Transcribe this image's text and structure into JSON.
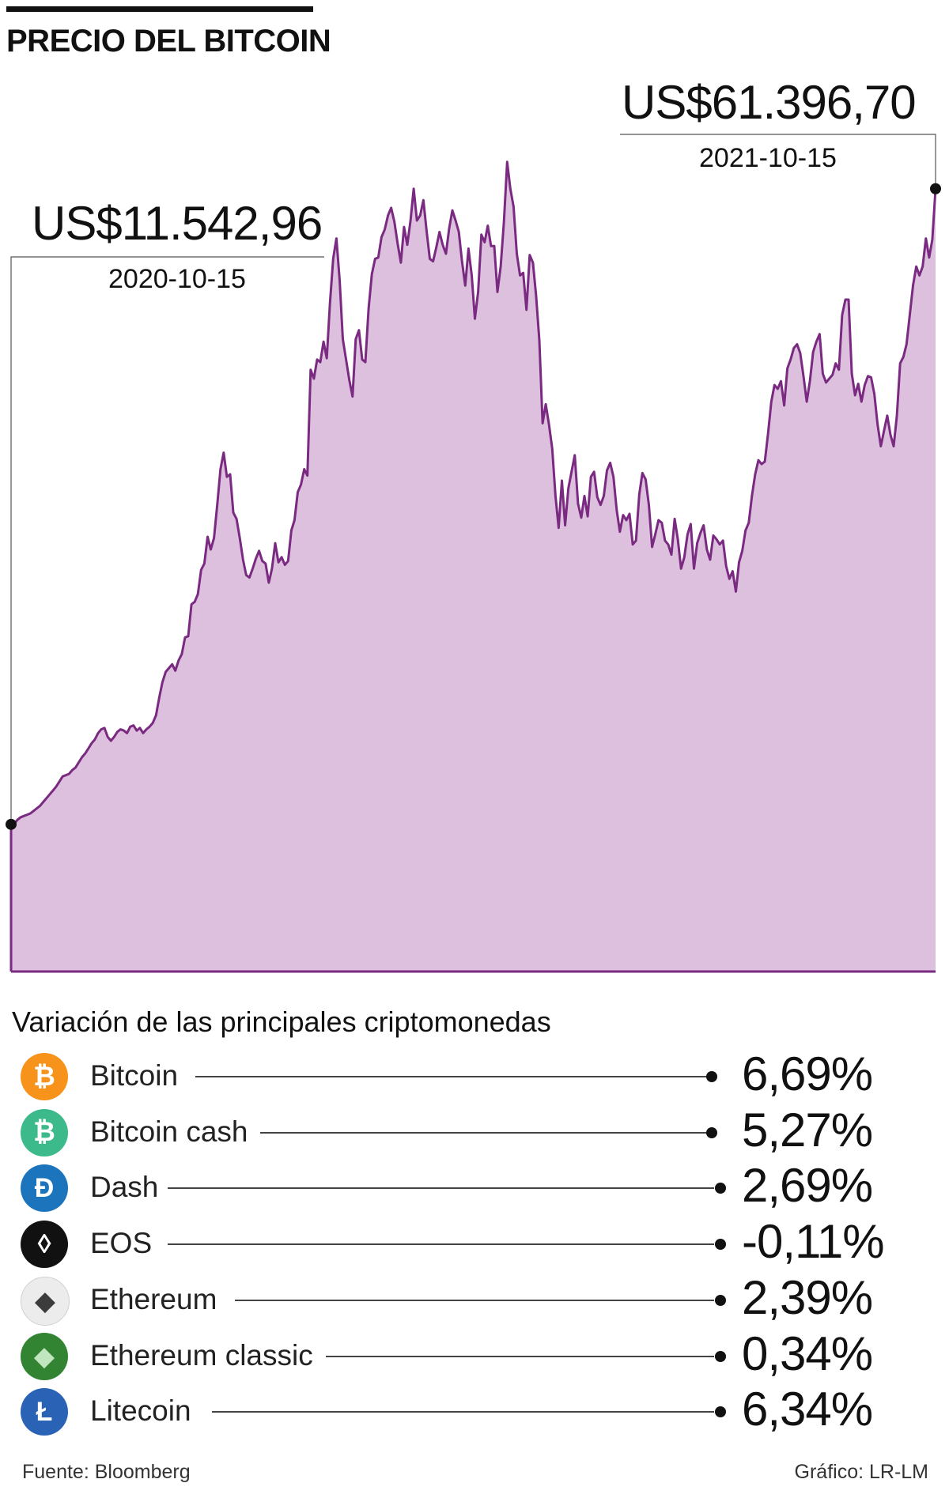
{
  "header": {
    "title": "PRECIO DEL BITCOIN"
  },
  "chart_data": {
    "type": "area",
    "title": "PRECIO DEL BITCOIN",
    "x_start": "2020-10-15",
    "x_end": "2021-10-15",
    "color": "#7a2a80",
    "fill": "#dcc0de",
    "grid": false,
    "start_point": {
      "value_label": "US$11.542,96",
      "date": "2020-10-15",
      "value": 11542.96
    },
    "end_point": {
      "value_label": "US$61.396,70",
      "date": "2021-10-15",
      "value": 61396.7
    },
    "ylim": [
      0,
      70000
    ],
    "values": [
      11543,
      11600,
      11900,
      12100,
      12200,
      12300,
      12400,
      12600,
      12800,
      13000,
      13300,
      13600,
      13900,
      14200,
      14500,
      14900,
      15300,
      15400,
      15500,
      15800,
      16000,
      16400,
      16800,
      17100,
      17500,
      17900,
      18200,
      18700,
      19000,
      19100,
      18400,
      18100,
      18400,
      18800,
      19000,
      18900,
      18700,
      19200,
      19300,
      18900,
      19100,
      18700,
      19000,
      19200,
      19500,
      20100,
      21500,
      22700,
      23500,
      23800,
      24100,
      23600,
      24400,
      24900,
      26200,
      26300,
      28800,
      29000,
      29600,
      31500,
      32000,
      34100,
      33100,
      34000,
      36600,
      39400,
      40700,
      38800,
      39000,
      36000,
      35500,
      34000,
      32300,
      31100,
      30900,
      31600,
      32400,
      33000,
      32200,
      32000,
      30500,
      31600,
      33600,
      32100,
      32500,
      31900,
      32200,
      34600,
      35400,
      37600,
      38200,
      39400,
      38900,
      47200,
      46500,
      48000,
      47800,
      49400,
      48100,
      52400,
      55900,
      57500,
      54200,
      49600,
      48000,
      46400,
      45100,
      49600,
      50300,
      48000,
      47800,
      52000,
      54700,
      55900,
      56000,
      57600,
      58200,
      59300,
      59900,
      58800,
      57100,
      55600,
      58400,
      57000,
      58900,
      61400,
      58900,
      59300,
      60500,
      58100,
      55900,
      55700,
      56800,
      58000,
      57000,
      56300,
      58300,
      59700,
      58900,
      58000,
      55700,
      53800,
      56700,
      54600,
      51200,
      53300,
      57800,
      57200,
      58500,
      56900,
      56900,
      53300,
      55300,
      58800,
      63500,
      61400,
      60000,
      56300,
      54600,
      54800,
      51900,
      56200,
      55600,
      53000,
      49500,
      43000,
      44500,
      42900,
      41000,
      37300,
      34800,
      38500,
      35000,
      37900,
      39200,
      40500,
      36700,
      35600,
      37300,
      35700,
      38800,
      39200,
      37200,
      36600,
      37300,
      39300,
      39900,
      38800,
      36200,
      34500,
      35800,
      35400,
      35900,
      33500,
      33800,
      37400,
      39100,
      38600,
      36600,
      33300,
      34300,
      35400,
      35200,
      33800,
      33500,
      32700,
      35500,
      33900,
      31600,
      32500,
      34300,
      35100,
      31600,
      33600,
      34400,
      35000,
      33100,
      32300,
      34200,
      33900,
      33500,
      33800,
      31800,
      30800,
      31400,
      29800,
      32100,
      33000,
      34600,
      35200,
      37300,
      39000,
      40100,
      39800,
      40000,
      42200,
      44700,
      46000,
      45700,
      46300,
      44400,
      47300,
      48000,
      48900,
      49200,
      48500,
      46700,
      44700,
      46300,
      48600,
      49400,
      50000,
      46900,
      46200,
      46500,
      46800,
      47700,
      47200,
      51500,
      52700,
      52700,
      46900,
      45200,
      46100,
      44700,
      46000,
      46700,
      46600,
      45300,
      42900,
      41200,
      42400,
      43600,
      42100,
      41200,
      43600,
      47700,
      48200,
      49200,
      51500,
      53800,
      55300,
      54600,
      55300,
      57500,
      56000,
      57400,
      61400
    ]
  },
  "crypto_section": {
    "title": "Variación de las principales criptomonedas",
    "items": [
      {
        "name": "Bitcoin",
        "pct": "6,69%",
        "icon": "bitcoin-icon",
        "glyph": "₿",
        "bg": "#f7931a",
        "fg": "#ffffff"
      },
      {
        "name": "Bitcoin cash",
        "pct": "5,27%",
        "icon": "bitcoin-cash-icon",
        "glyph": "₿",
        "bg": "#3cba8c",
        "fg": "#ffffff"
      },
      {
        "name": "Dash",
        "pct": "2,69%",
        "icon": "dash-icon",
        "glyph": "Đ",
        "bg": "#1c75bc",
        "fg": "#ffffff"
      },
      {
        "name": "EOS",
        "pct": "-0,11%",
        "icon": "eos-icon",
        "glyph": "◊",
        "bg": "#111111",
        "fg": "#ffffff"
      },
      {
        "name": "Ethereum",
        "pct": "2,39%",
        "icon": "ethereum-icon",
        "glyph": "◆",
        "bg": "#ececec",
        "fg": "#3c3c3d"
      },
      {
        "name": "Ethereum classic",
        "pct": "0,34%",
        "icon": "ethereum-classic-icon",
        "glyph": "◆",
        "bg": "#328332",
        "fg": "#bfe6bf"
      },
      {
        "name": "Litecoin",
        "pct": "6,34%",
        "icon": "litecoin-icon",
        "glyph": "Ł",
        "bg": "#2a62b6",
        "fg": "#ffffff"
      }
    ]
  },
  "footer": {
    "source": "Fuente: Bloomberg",
    "credit": "Gráfico: LR-LM"
  }
}
